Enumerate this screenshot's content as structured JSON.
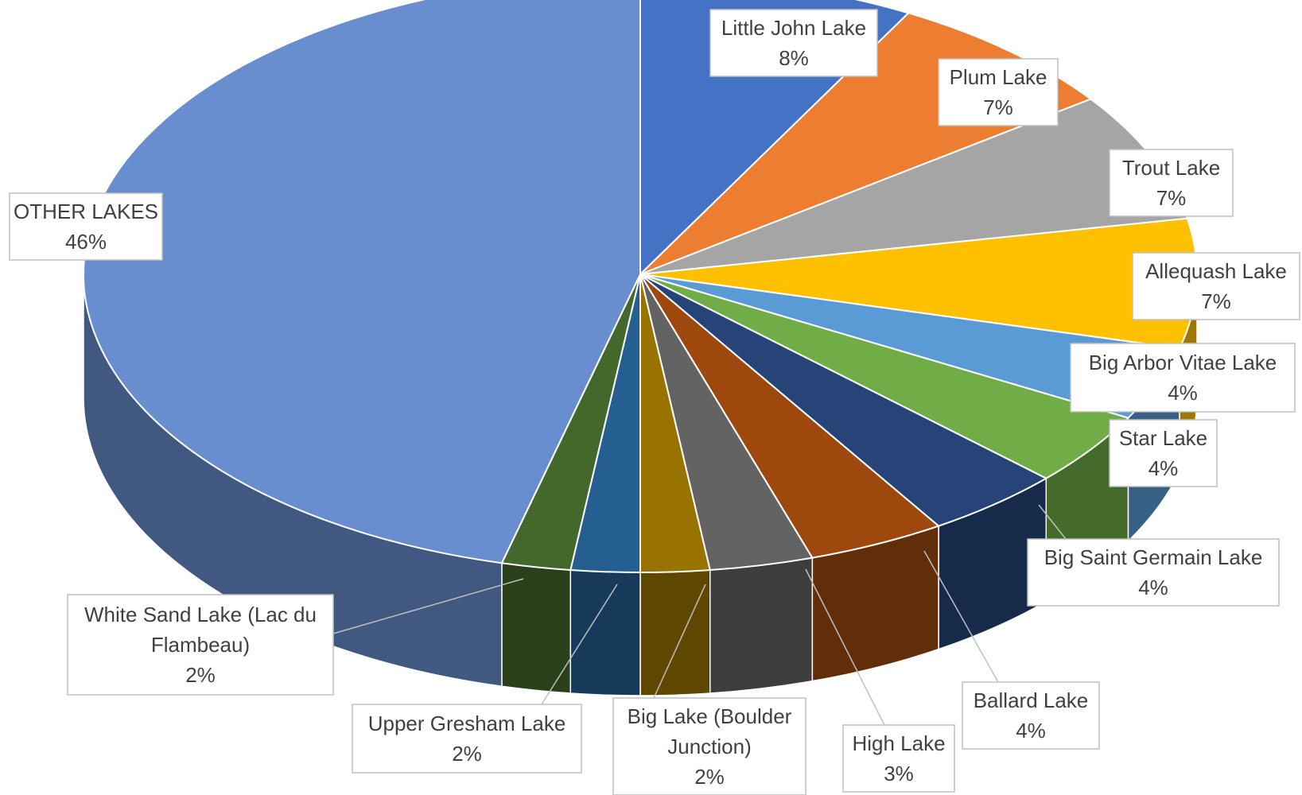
{
  "chart_data": {
    "type": "pie",
    "style": "3d",
    "title": "",
    "label_format": "category-and-percent",
    "slices": [
      {
        "label": "Little John Lake",
        "value": 8,
        "value_label": "8%",
        "color": "#4472C4"
      },
      {
        "label": "Plum Lake",
        "value": 7,
        "value_label": "7%",
        "color": "#ED7D31"
      },
      {
        "label": "Trout Lake",
        "value": 7,
        "value_label": "7%",
        "color": "#A5A5A5"
      },
      {
        "label": "Allequash Lake",
        "value": 7,
        "value_label": "7%",
        "color": "#FFC000"
      },
      {
        "label": "Big Arbor Vitae Lake",
        "value": 4,
        "value_label": "4%",
        "color": "#5B9BD5"
      },
      {
        "label": "Star Lake",
        "value": 4,
        "value_label": "4%",
        "color": "#70AD47"
      },
      {
        "label": "Big Saint Germain Lake",
        "value": 4,
        "value_label": "4%",
        "color": "#264478"
      },
      {
        "label": "Ballard Lake",
        "value": 4,
        "value_label": "4%",
        "color": "#9E480E"
      },
      {
        "label": "High Lake",
        "value": 3,
        "value_label": "3%",
        "color": "#636363"
      },
      {
        "label": "Big Lake (Boulder Junction)",
        "value": 2,
        "value_label": "2%",
        "color": "#997300"
      },
      {
        "label": "Upper Gresham Lake",
        "value": 2,
        "value_label": "2%",
        "color": "#255E91"
      },
      {
        "label": "White Sand Lake (Lac du Flambeau)",
        "value": 2,
        "value_label": "2%",
        "color": "#43682B"
      },
      {
        "label": "OTHER LAKES",
        "value": 46,
        "value_label": "46%",
        "color": "#698ED0"
      }
    ]
  }
}
